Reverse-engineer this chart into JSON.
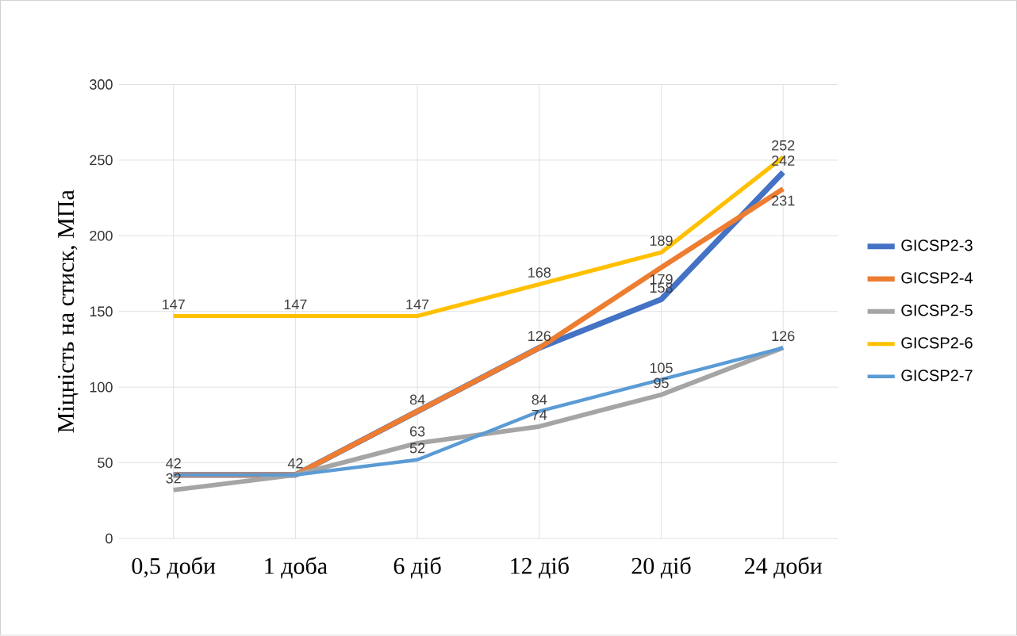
{
  "chart_data": {
    "type": "line",
    "ylabel": "Міцність на стиск, МПа",
    "categories": [
      "0,5 доби",
      "1 доба",
      "6 діб",
      "12 діб",
      "20 діб",
      "24 доби"
    ],
    "series": [
      {
        "name": "GICSP2-3",
        "color": "#4472c4",
        "values": [
          42,
          42,
          84,
          126,
          158,
          242
        ],
        "value_labels": [
          "42",
          "42",
          "84",
          "126",
          "158",
          "242"
        ]
      },
      {
        "name": "GICSP2-4",
        "color": "#ed7d31",
        "values": [
          42,
          42,
          84,
          126,
          179,
          231
        ],
        "value_labels": [
          null,
          null,
          null,
          null,
          "179",
          "231"
        ]
      },
      {
        "name": "GICSP2-5",
        "color": "#a5a5a5",
        "values": [
          32,
          42,
          63,
          74,
          95,
          126
        ],
        "value_labels": [
          "32",
          null,
          "63",
          "74",
          "95",
          "126"
        ]
      },
      {
        "name": "GICSP2-6",
        "color": "#ffc000",
        "values": [
          147,
          147,
          147,
          168,
          189,
          252
        ],
        "value_labels": [
          "147",
          "147",
          "147",
          "168",
          "189",
          "252"
        ]
      },
      {
        "name": "GICSP2-7",
        "color": "#5b9bd5",
        "values": [
          42,
          42,
          52,
          84,
          105,
          126
        ],
        "value_labels": [
          null,
          null,
          "52",
          "84",
          "105",
          null
        ]
      }
    ],
    "ylim": [
      0,
      300
    ],
    "yticks": [
      0,
      50,
      100,
      150,
      200,
      250,
      300
    ],
    "grid": true,
    "legend": "right",
    "marker": "none",
    "line_style": "solid"
  }
}
